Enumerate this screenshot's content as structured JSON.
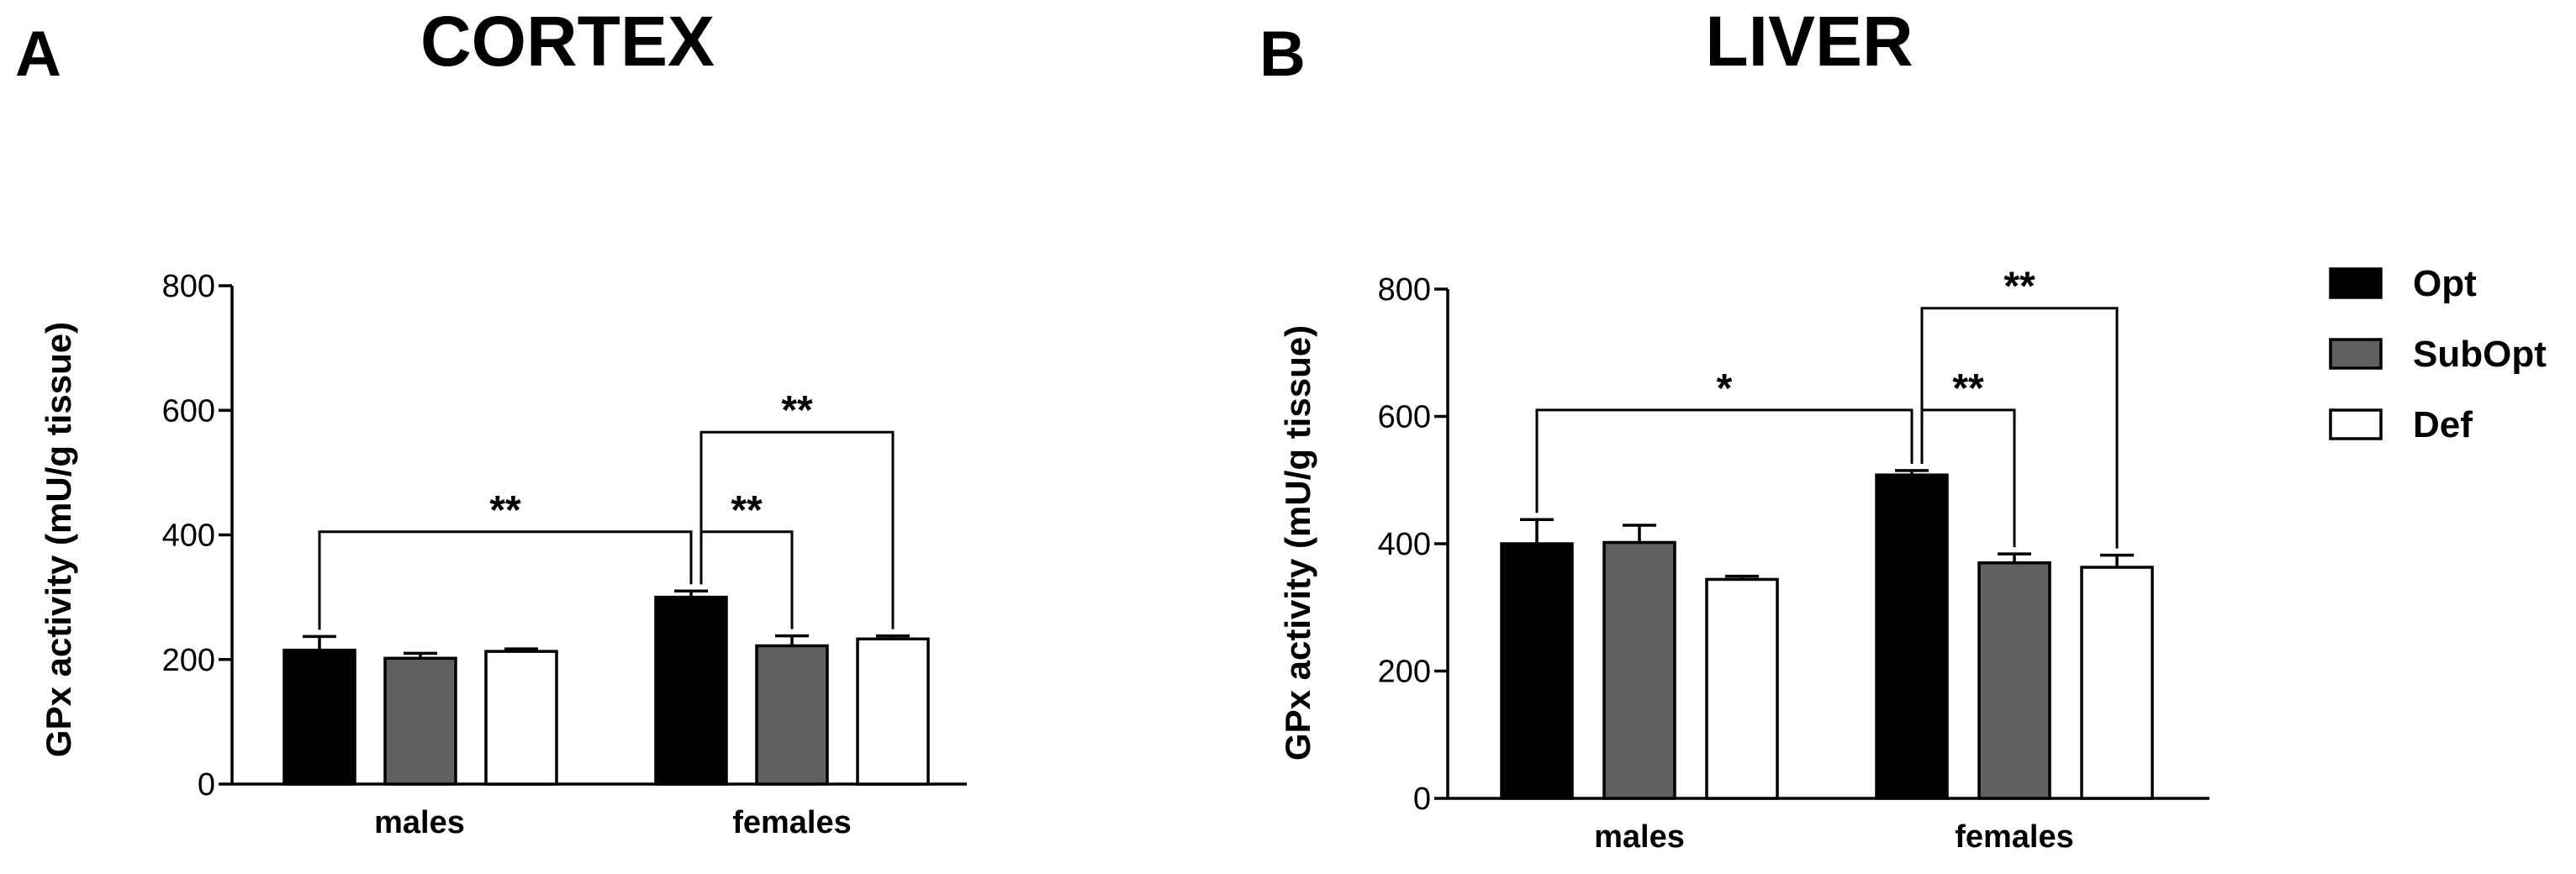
{
  "chart_data": [
    {
      "type": "bar",
      "panel_label": "A",
      "title": "CORTEX",
      "ylabel": "GPx activity (mU/g tissue)",
      "ylim": [
        0,
        800
      ],
      "yticks": [
        0,
        200,
        400,
        600,
        800
      ],
      "categories": [
        "males",
        "females"
      ],
      "series": [
        {
          "name": "Opt",
          "color": "#000000",
          "values": [
            215,
            300
          ],
          "errors": [
            22,
            10
          ]
        },
        {
          "name": "SubOpt",
          "color": "#606060",
          "values": [
            202,
            222
          ],
          "errors": [
            8,
            16
          ]
        },
        {
          "name": "Def",
          "color": "#ffffff",
          "values": [
            213,
            233
          ],
          "errors": [
            4,
            5
          ]
        }
      ],
      "significance": [
        {
          "from": [
            0,
            0
          ],
          "to": [
            1,
            0
          ],
          "label": "**",
          "y": 405
        },
        {
          "from": [
            1,
            0
          ],
          "to": [
            1,
            1
          ],
          "label": "**",
          "y": 405
        },
        {
          "from": [
            1,
            0
          ],
          "to": [
            1,
            2
          ],
          "label": "**",
          "y": 565
        }
      ]
    },
    {
      "type": "bar",
      "panel_label": "B",
      "title": "LIVER",
      "ylabel": "GPx activity (mU/g tissue)",
      "ylim": [
        0,
        800
      ],
      "yticks": [
        0,
        200,
        400,
        600,
        800
      ],
      "categories": [
        "males",
        "females"
      ],
      "series": [
        {
          "name": "Opt",
          "color": "#000000",
          "values": [
            400,
            508
          ],
          "errors": [
            38,
            7
          ]
        },
        {
          "name": "SubOpt",
          "color": "#606060",
          "values": [
            402,
            370
          ],
          "errors": [
            27,
            14
          ]
        },
        {
          "name": "Def",
          "color": "#ffffff",
          "values": [
            344,
            363
          ],
          "errors": [
            5,
            19
          ]
        }
      ],
      "significance": [
        {
          "from": [
            0,
            0
          ],
          "to": [
            1,
            0
          ],
          "label": "*",
          "y": 610
        },
        {
          "from": [
            1,
            0
          ],
          "to": [
            1,
            1
          ],
          "label": "**",
          "y": 610
        },
        {
          "from": [
            1,
            0
          ],
          "to": [
            1,
            2
          ],
          "label": "**",
          "y": 770
        }
      ]
    }
  ],
  "legend": [
    {
      "label": "Opt",
      "color": "#000000"
    },
    {
      "label": "SubOpt",
      "color": "#606060"
    },
    {
      "label": "Def",
      "color": "#ffffff"
    }
  ]
}
